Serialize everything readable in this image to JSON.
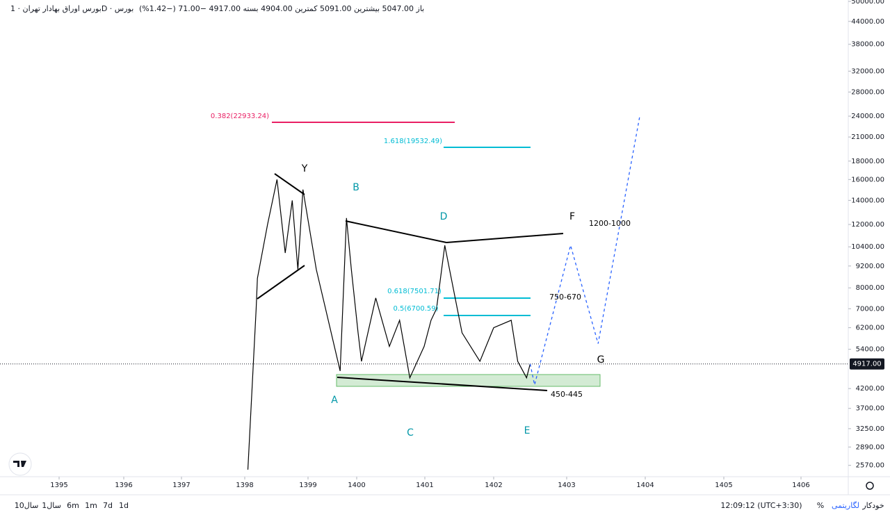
{
  "header": {
    "symbol": "بورس اوراق بهادار تهران · 1D · بورس",
    "ohlc": "باز 5047.00 بیشترین 5091.00 کمترین 4904.00 بسته 4917.00 −71.00 (−1.42%)"
  },
  "chart_data": {
    "type": "line",
    "log_scale": true,
    "x": [
      1398.05,
      1398.18,
      1398.2,
      1398.36,
      1398.51,
      1398.64,
      1398.75,
      1398.84,
      1398.92,
      1399.17,
      1399.36,
      1399.66,
      1399.79,
      1399.89,
      1400.02,
      1400.07,
      1400.28,
      1400.48,
      1400.63,
      1400.78,
      1400.99,
      1401.09,
      1401.17,
      1401.29,
      1401.44,
      1401.54,
      1401.8,
      1402,
      1402.24,
      1402.33,
      1402.45,
      1402.5,
      1402.56,
      1403.05,
      1403.4,
      1403.93
    ],
    "series": [
      {
        "color": "#000000",
        "values": [
          2500,
          7000,
          8500,
          12000,
          16000,
          10000,
          14000,
          9000,
          15000,
          9000,
          7000,
          4700,
          12500,
          9000,
          6000,
          5000,
          7500,
          5500,
          6500,
          4500,
          5500,
          6500,
          7000,
          10500,
          7500,
          6000,
          5000,
          6200,
          6500,
          5000,
          4500,
          4917,
          null,
          null,
          null,
          null
        ]
      },
      {
        "color": "#2962ff",
        "dashed": true,
        "values": [
          null,
          null,
          null,
          null,
          null,
          null,
          null,
          null,
          null,
          null,
          null,
          null,
          null,
          null,
          null,
          null,
          null,
          null,
          null,
          null,
          null,
          null,
          null,
          null,
          null,
          null,
          null,
          null,
          null,
          null,
          null,
          4917,
          4300,
          10500,
          5600,
          24000
        ]
      }
    ],
    "xlim": [
      1394.35,
      1406.77
    ],
    "xticks": [
      1395,
      1396,
      1397,
      1398,
      1399,
      1400,
      1401,
      1402,
      1403,
      1404,
      1405,
      1406
    ],
    "ylim": [
      2390,
      50450
    ],
    "yticks": [
      {
        "value": 50000,
        "label": "50000.00"
      },
      {
        "value": 44000,
        "label": "44000.00"
      },
      {
        "value": 38000,
        "label": "38000.00"
      },
      {
        "value": 32000,
        "label": "32000.00"
      },
      {
        "value": 28000,
        "label": "28000.00"
      },
      {
        "value": 24000,
        "label": "24000.00"
      },
      {
        "value": 21000,
        "label": "21000.00"
      },
      {
        "value": 18000,
        "label": "18000.00"
      },
      {
        "value": 16000,
        "label": "16000.00"
      },
      {
        "value": 14000,
        "label": "14000.00"
      },
      {
        "value": 12000,
        "label": "12000.00"
      },
      {
        "value": 10400,
        "label": "10400.00"
      },
      {
        "value": 9200,
        "label": "9200.00"
      },
      {
        "value": 8000,
        "label": "8000.00"
      },
      {
        "value": 7000,
        "label": "7000.00"
      },
      {
        "value": 6200,
        "label": "6200.00"
      },
      {
        "value": 5400,
        "label": "5400.00"
      },
      {
        "value": 4200,
        "label": "4200.00"
      },
      {
        "value": 3700,
        "label": "3700.00"
      },
      {
        "value": 3250,
        "label": "3250.00"
      },
      {
        "value": 2890,
        "label": "2890.00"
      },
      {
        "value": 2570,
        "label": "2570.00"
      }
    ],
    "last_price": {
      "value": 4917,
      "label": "4917.00"
    },
    "annotations": [
      {
        "text": "Y",
        "color": "#000000"
      },
      {
        "text": "B",
        "color": "#0097a7"
      },
      {
        "text": "D",
        "color": "#0097a7"
      },
      {
        "text": "F",
        "color": "#000000"
      },
      {
        "text": "1200-1000",
        "color": "#000000"
      },
      {
        "text": "750-670",
        "color": "#000000"
      },
      {
        "text": "G",
        "color": "#000000"
      },
      {
        "text": "450-445",
        "color": "#000000"
      },
      {
        "text": "A",
        "color": "#0097a7"
      },
      {
        "text": "C",
        "color": "#0097a7"
      },
      {
        "text": "E",
        "color": "#0097a7"
      },
      {
        "text": "0.382(22933.24)",
        "color": "#e91e63"
      },
      {
        "text": "1.618(19532.49)",
        "color": "#00bcd4"
      },
      {
        "text": "0.618(7501.71)",
        "color": "#00bcd4"
      },
      {
        "text": "0.5(6700.59)",
        "color": "#00bcd4"
      }
    ]
  },
  "toolbar": {
    "ranges": [
      "10سال",
      "1سال",
      "6m",
      "1m",
      "7d",
      "1d"
    ],
    "clock": "12:09:12 (UTC+3:30)",
    "percent": "%",
    "log": "لگاریتمی",
    "auto": "خودکار"
  }
}
